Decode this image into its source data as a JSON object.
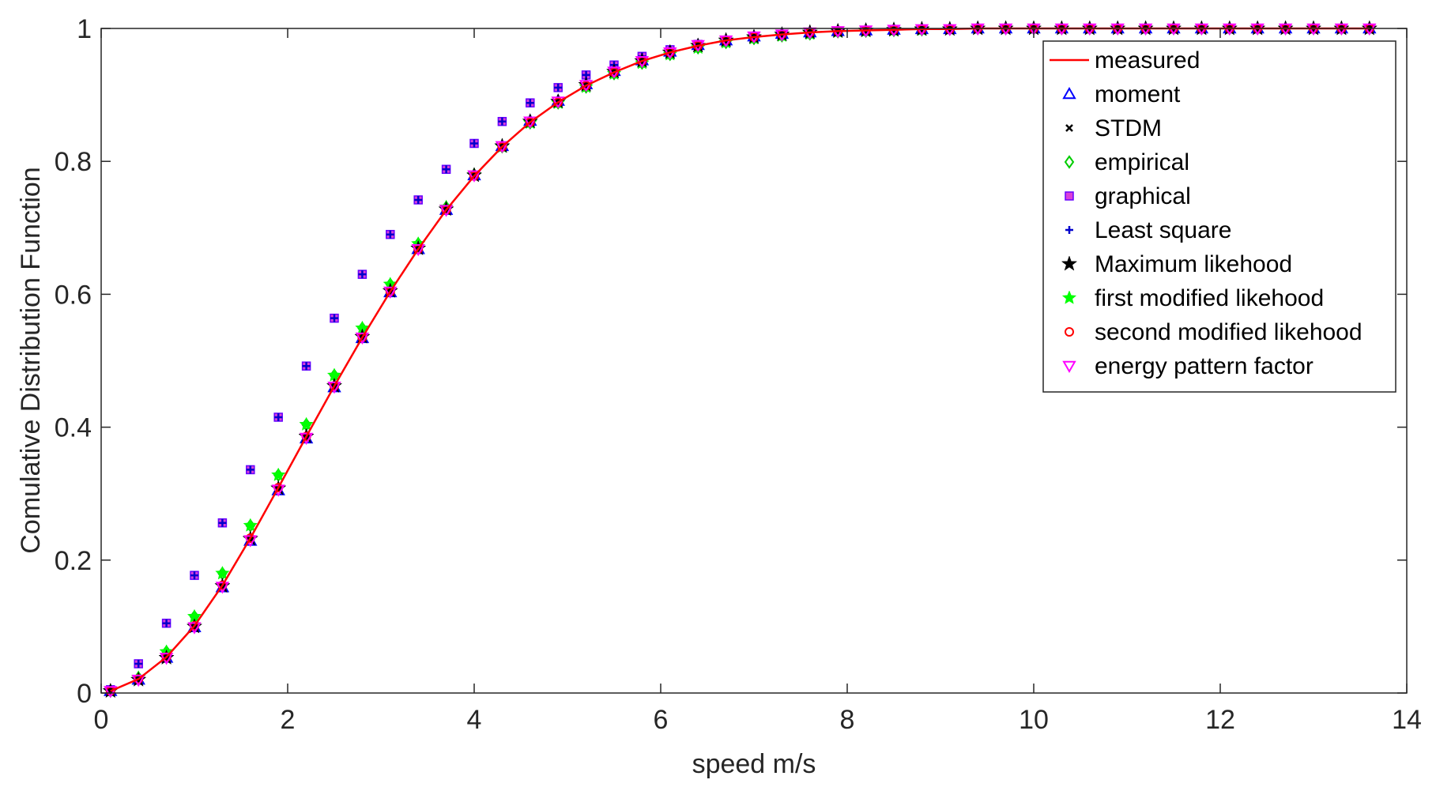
{
  "chart_data": {
    "type": "line",
    "xlabel": "speed m/s",
    "ylabel": "Comulative Distribution Function",
    "xlim": [
      0,
      14
    ],
    "ylim": [
      0,
      1
    ],
    "xticks": [
      "0",
      "2",
      "4",
      "6",
      "8",
      "10",
      "12",
      "14"
    ],
    "yticks": [
      "0",
      "0.2",
      "0.4",
      "0.6",
      "0.8",
      "1"
    ],
    "grid": false,
    "legend_position": "top-right",
    "x": [
      0.1,
      0.4,
      0.7,
      1.0,
      1.3,
      1.6,
      1.9,
      2.2,
      2.5,
      2.8,
      3.1,
      3.4,
      3.7,
      4.0,
      4.3,
      4.6,
      4.9,
      5.2,
      5.5,
      5.8,
      6.1,
      6.4,
      6.7,
      7.0,
      7.3,
      7.6,
      7.9,
      8.2,
      8.5,
      8.8,
      9.1,
      9.4,
      9.7,
      10.0,
      10.3,
      10.6,
      10.9,
      11.2,
      11.5,
      11.8,
      12.1,
      12.4,
      12.7,
      13.0,
      13.3,
      13.6
    ],
    "series": [
      {
        "name": "measured",
        "marker": "line",
        "color": "#ff0000",
        "values": [
          0.003,
          0.021,
          0.054,
          0.101,
          0.162,
          0.233,
          0.309,
          0.386,
          0.462,
          0.535,
          0.604,
          0.668,
          0.727,
          0.778,
          0.822,
          0.859,
          0.889,
          0.914,
          0.934,
          0.951,
          0.964,
          0.974,
          0.982,
          0.987,
          0.991,
          0.994,
          0.996,
          0.997,
          0.998,
          0.999,
          0.999,
          1.0,
          1.0,
          1.0,
          1.0,
          1.0,
          1.0,
          1.0,
          1.0,
          1.0,
          1.0,
          1.0,
          1.0,
          1.0,
          1.0,
          1.0
        ]
      },
      {
        "name": "moment",
        "marker": "triangle-up",
        "color": "#0000ff",
        "values": [
          0.003,
          0.02,
          0.053,
          0.099,
          0.159,
          0.229,
          0.305,
          0.383,
          0.46,
          0.534,
          0.603,
          0.668,
          0.727,
          0.779,
          0.823,
          0.861,
          0.891,
          0.916,
          0.936,
          0.952,
          0.965,
          0.975,
          0.982,
          0.988,
          0.992,
          0.994,
          0.996,
          0.997,
          0.998,
          0.999,
          0.999,
          1.0,
          1.0,
          1.0,
          1.0,
          1.0,
          1.0,
          1.0,
          1.0,
          1.0,
          1.0,
          1.0,
          1.0,
          1.0,
          1.0,
          1.0
        ]
      },
      {
        "name": "STDM",
        "marker": "x",
        "color": "#000000",
        "values": [
          0.003,
          0.021,
          0.054,
          0.101,
          0.162,
          0.233,
          0.309,
          0.386,
          0.462,
          0.535,
          0.604,
          0.668,
          0.727,
          0.778,
          0.822,
          0.859,
          0.889,
          0.914,
          0.934,
          0.951,
          0.964,
          0.974,
          0.982,
          0.987,
          0.991,
          0.994,
          0.996,
          0.997,
          0.998,
          0.999,
          0.999,
          1.0,
          1.0,
          1.0,
          1.0,
          1.0,
          1.0,
          1.0,
          1.0,
          1.0,
          1.0,
          1.0,
          1.0,
          1.0,
          1.0,
          1.0
        ]
      },
      {
        "name": "empirical",
        "marker": "diamond",
        "color": "#00cc00",
        "values": [
          0.003,
          0.023,
          0.062,
          0.115,
          0.18,
          0.252,
          0.328,
          0.404,
          0.478,
          0.549,
          0.615,
          0.676,
          0.731,
          0.78,
          0.822,
          0.858,
          0.888,
          0.912,
          0.932,
          0.948,
          0.961,
          0.971,
          0.979,
          0.985,
          0.989,
          0.992,
          0.995,
          0.996,
          0.997,
          0.998,
          0.999,
          1.0,
          1.0,
          1.0,
          1.0,
          1.0,
          1.0,
          1.0,
          1.0,
          1.0,
          1.0,
          1.0,
          1.0,
          1.0,
          1.0,
          1.0
        ]
      },
      {
        "name": "graphical",
        "marker": "square",
        "color": "#cc00cc",
        "values": [
          0.005,
          0.044,
          0.105,
          0.177,
          0.256,
          0.336,
          0.415,
          0.492,
          0.564,
          0.63,
          0.69,
          0.742,
          0.788,
          0.827,
          0.86,
          0.888,
          0.911,
          0.93,
          0.945,
          0.958,
          0.968,
          0.976,
          0.982,
          0.987,
          0.99,
          0.993,
          0.995,
          0.996,
          0.997,
          0.998,
          0.999,
          1.0,
          1.0,
          1.0,
          1.0,
          1.0,
          1.0,
          1.0,
          1.0,
          1.0,
          1.0,
          1.0,
          1.0,
          1.0,
          1.0,
          1.0
        ]
      },
      {
        "name": "Least square",
        "marker": "plus",
        "color": "#0000cc",
        "values": [
          0.005,
          0.044,
          0.105,
          0.177,
          0.256,
          0.336,
          0.415,
          0.492,
          0.564,
          0.63,
          0.69,
          0.742,
          0.788,
          0.827,
          0.86,
          0.888,
          0.911,
          0.93,
          0.945,
          0.958,
          0.968,
          0.976,
          0.982,
          0.987,
          0.99,
          0.993,
          0.995,
          0.996,
          0.997,
          0.998,
          0.999,
          1.0,
          1.0,
          1.0,
          1.0,
          1.0,
          1.0,
          1.0,
          1.0,
          1.0,
          1.0,
          1.0,
          1.0,
          1.0,
          1.0,
          1.0
        ]
      },
      {
        "name": "Maximum likehood",
        "marker": "star",
        "color": "#000000",
        "values": [
          0.003,
          0.02,
          0.053,
          0.1,
          0.161,
          0.232,
          0.308,
          0.386,
          0.462,
          0.536,
          0.605,
          0.669,
          0.728,
          0.779,
          0.823,
          0.86,
          0.89,
          0.915,
          0.935,
          0.951,
          0.964,
          0.974,
          0.982,
          0.987,
          0.991,
          0.994,
          0.996,
          0.997,
          0.998,
          0.999,
          0.999,
          1.0,
          1.0,
          1.0,
          1.0,
          1.0,
          1.0,
          1.0,
          1.0,
          1.0,
          1.0,
          1.0,
          1.0,
          1.0,
          1.0,
          1.0
        ]
      },
      {
        "name": "first modified likehood",
        "marker": "pentagram",
        "color": "#00ff00",
        "values": [
          0.003,
          0.023,
          0.062,
          0.115,
          0.18,
          0.252,
          0.328,
          0.404,
          0.478,
          0.549,
          0.615,
          0.676,
          0.731,
          0.78,
          0.822,
          0.858,
          0.888,
          0.912,
          0.932,
          0.948,
          0.961,
          0.971,
          0.979,
          0.985,
          0.989,
          0.992,
          0.995,
          0.996,
          0.997,
          0.998,
          0.999,
          1.0,
          1.0,
          1.0,
          1.0,
          1.0,
          1.0,
          1.0,
          1.0,
          1.0,
          1.0,
          1.0,
          1.0,
          1.0,
          1.0,
          1.0
        ]
      },
      {
        "name": "second modified likehood",
        "marker": "circle",
        "color": "#ff0000",
        "values": [
          0.003,
          0.021,
          0.054,
          0.101,
          0.162,
          0.233,
          0.309,
          0.386,
          0.462,
          0.535,
          0.604,
          0.668,
          0.727,
          0.778,
          0.822,
          0.859,
          0.889,
          0.914,
          0.934,
          0.951,
          0.964,
          0.974,
          0.982,
          0.987,
          0.991,
          0.994,
          0.996,
          0.997,
          0.998,
          0.999,
          0.999,
          1.0,
          1.0,
          1.0,
          1.0,
          1.0,
          1.0,
          1.0,
          1.0,
          1.0,
          1.0,
          1.0,
          1.0,
          1.0,
          1.0,
          1.0
        ]
      },
      {
        "name": "energy pattern factor",
        "marker": "triangle-down",
        "color": "#ff00ff",
        "values": [
          0.003,
          0.02,
          0.053,
          0.099,
          0.16,
          0.23,
          0.306,
          0.384,
          0.461,
          0.535,
          0.604,
          0.668,
          0.727,
          0.779,
          0.823,
          0.86,
          0.89,
          0.915,
          0.935,
          0.951,
          0.964,
          0.975,
          0.982,
          0.988,
          0.991,
          0.994,
          0.996,
          0.997,
          0.998,
          0.999,
          0.999,
          1.0,
          1.0,
          1.0,
          1.0,
          1.0,
          1.0,
          1.0,
          1.0,
          1.0,
          1.0,
          1.0,
          1.0,
          1.0,
          1.0,
          1.0
        ]
      }
    ]
  }
}
